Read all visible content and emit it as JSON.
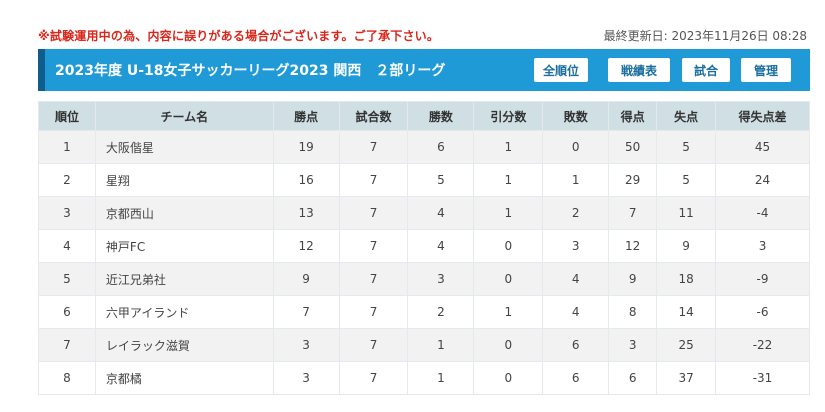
{
  "notice": "※試験運用中の為、内容に誤りがある場合がございます。ご了承下さい。",
  "last_updated": "最終更新日: 2023年11月26日 08:28",
  "header": {
    "title": "2023年度 U-18女子サッカーリーグ2023 関西　２部リーグ",
    "buttons": [
      "全順位",
      "戦績表",
      "試合",
      "管理"
    ]
  },
  "table": {
    "columns": [
      "順位",
      "チーム名",
      "勝点",
      "試合数",
      "勝数",
      "引分数",
      "敗数",
      "得点",
      "失点",
      "得失点差"
    ],
    "rows": [
      [
        "1",
        "大阪偕星",
        "19",
        "7",
        "6",
        "1",
        "0",
        "50",
        "5",
        "45"
      ],
      [
        "2",
        "星翔",
        "16",
        "7",
        "5",
        "1",
        "1",
        "29",
        "5",
        "24"
      ],
      [
        "3",
        "京都西山",
        "13",
        "7",
        "4",
        "1",
        "2",
        "7",
        "11",
        "-4"
      ],
      [
        "4",
        "神戸FC",
        "12",
        "7",
        "4",
        "0",
        "3",
        "12",
        "9",
        "3"
      ],
      [
        "5",
        "近江兄弟社",
        "9",
        "7",
        "3",
        "0",
        "4",
        "9",
        "18",
        "-9"
      ],
      [
        "6",
        "六甲アイランド",
        "7",
        "7",
        "2",
        "1",
        "4",
        "8",
        "14",
        "-6"
      ],
      [
        "7",
        "レイラック滋賀",
        "3",
        "7",
        "1",
        "0",
        "6",
        "3",
        "25",
        "-22"
      ],
      [
        "8",
        "京都橘",
        "3",
        "7",
        "1",
        "0",
        "6",
        "6",
        "37",
        "-31"
      ]
    ]
  }
}
